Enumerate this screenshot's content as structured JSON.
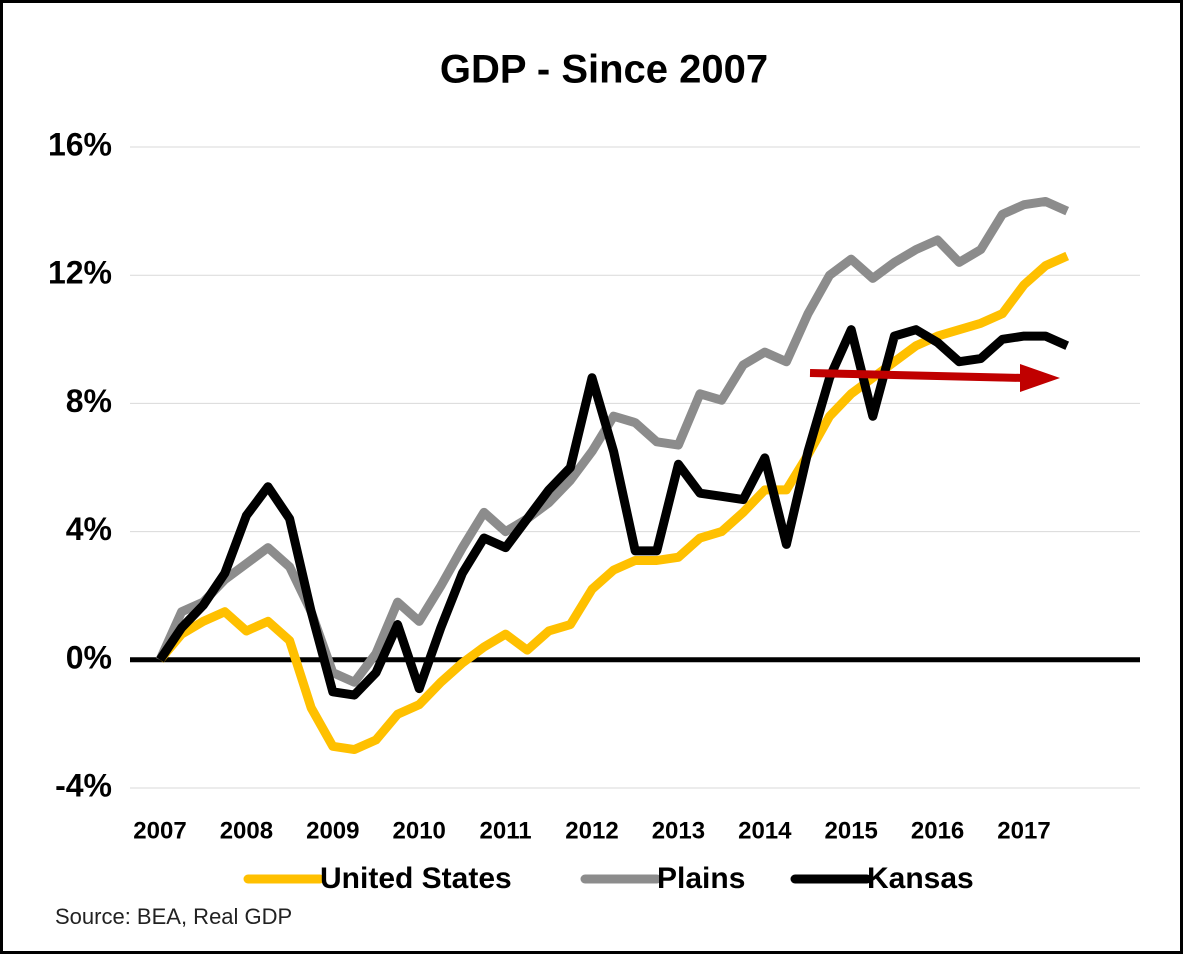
{
  "chart_data": {
    "type": "line",
    "title": "GDP - Since 2007",
    "categories": [
      "2007",
      null,
      null,
      null,
      "2008",
      null,
      null,
      null,
      "2009",
      null,
      null,
      null,
      "2010",
      null,
      null,
      null,
      "2011",
      null,
      null,
      null,
      "2012",
      null,
      null,
      null,
      "2013",
      null,
      null,
      null,
      "2014",
      null,
      null,
      null,
      "2015",
      null,
      null,
      null,
      "2016",
      null,
      null,
      null,
      "2017",
      null,
      null
    ],
    "series": [
      {
        "name": "United States",
        "color": "#ffc000",
        "values": [
          0,
          0.8,
          1.2,
          1.5,
          0.9,
          1.2,
          0.6,
          -1.5,
          -2.7,
          -2.8,
          -2.5,
          -1.7,
          -1.4,
          -0.7,
          -0.1,
          0.4,
          0.8,
          0.3,
          0.9,
          1.1,
          2.2,
          2.8,
          3.1,
          3.1,
          3.2,
          3.8,
          4.0,
          4.6,
          5.3,
          5.3,
          6.4,
          7.6,
          8.3,
          8.8,
          9.3,
          9.8,
          10.1,
          10.3,
          10.5,
          10.8,
          11.7,
          12.3,
          12.6
        ]
      },
      {
        "name": "Plains",
        "color": "#8c8c8c",
        "values": [
          0,
          1.5,
          1.8,
          2.5,
          3.0,
          3.5,
          2.9,
          1.5,
          -0.4,
          -0.7,
          0.2,
          1.8,
          1.2,
          2.3,
          3.5,
          4.6,
          4.0,
          4.4,
          4.9,
          5.6,
          6.5,
          7.6,
          7.4,
          6.8,
          6.7,
          8.3,
          8.1,
          9.2,
          9.6,
          9.3,
          10.8,
          12.0,
          12.5,
          11.9,
          12.4,
          12.8,
          13.1,
          12.4,
          12.8,
          13.9,
          14.2,
          14.3,
          14.0
        ]
      },
      {
        "name": "Kansas",
        "color": "#000000",
        "values": [
          0,
          1.0,
          1.7,
          2.7,
          4.5,
          5.4,
          4.4,
          1.5,
          -1.0,
          -1.1,
          -0.4,
          1.1,
          -0.9,
          1.0,
          2.7,
          3.8,
          3.5,
          4.4,
          5.3,
          6.0,
          8.8,
          6.5,
          3.4,
          3.4,
          6.1,
          5.2,
          5.1,
          5.0,
          6.3,
          3.6,
          6.5,
          8.8,
          10.3,
          7.6,
          10.1,
          10.3,
          9.9,
          9.3,
          9.4,
          10.0,
          10.1,
          10.1,
          9.8
        ]
      }
    ],
    "ylim": [
      -4,
      16
    ],
    "yticks": [
      {
        "value": -4,
        "label": "-4%"
      },
      {
        "value": 0,
        "label": "0%"
      },
      {
        "value": 4,
        "label": "4%"
      },
      {
        "value": 8,
        "label": "8%"
      },
      {
        "value": 12,
        "label": "12%"
      },
      {
        "value": 16,
        "label": "16%"
      }
    ],
    "grid": true,
    "source": "Source: BEA, Real GDP"
  }
}
